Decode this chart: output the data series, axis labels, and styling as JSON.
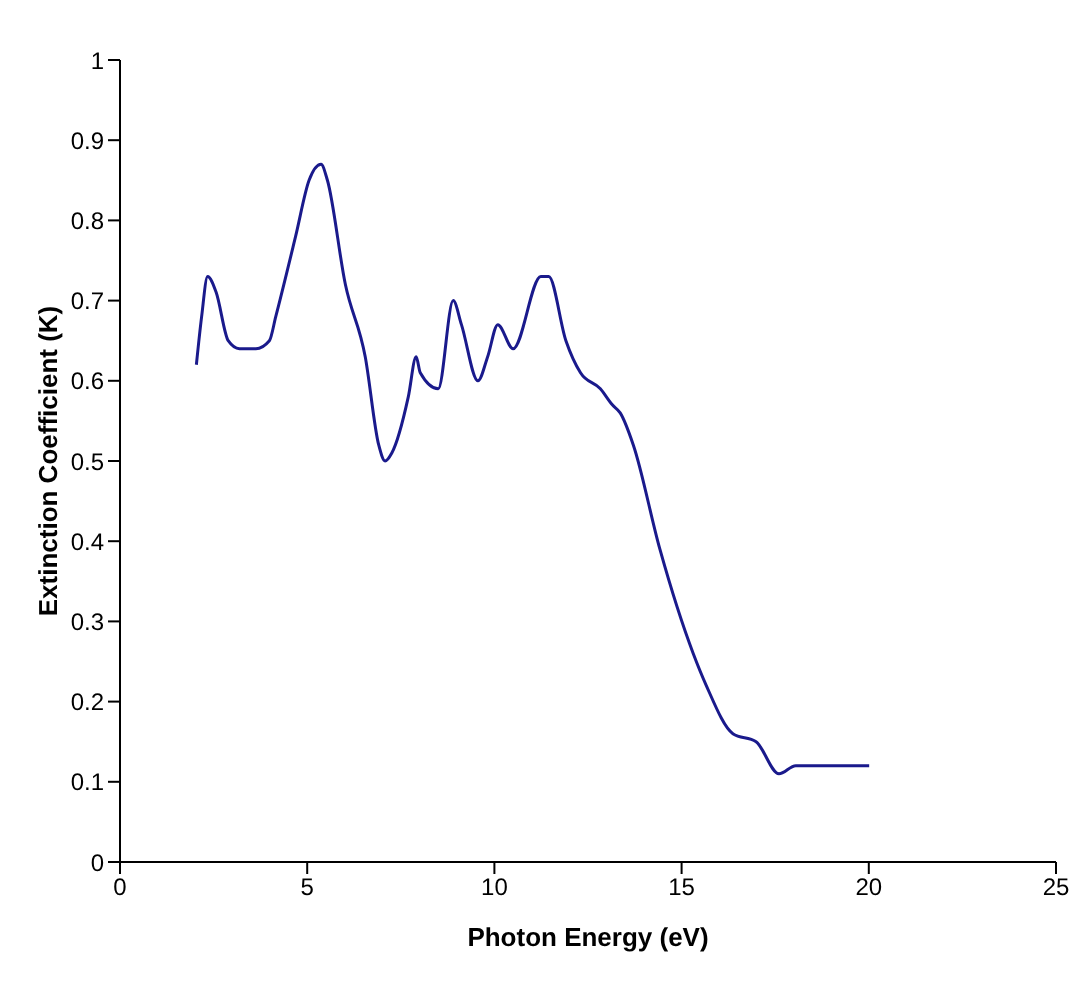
{
  "chart_data": {
    "type": "line",
    "xlabel": "Photon Energy (eV)",
    "ylabel": "Extinction Coefficient (K)",
    "x": [
      2.04,
      2.18,
      2.34,
      2.57,
      2.89,
      3.19,
      3.63,
      3.99,
      4.16,
      4.69,
      5.05,
      5.37,
      5.54,
      6.02,
      6.55,
      6.91,
      7.08,
      7.26,
      7.7,
      7.91,
      8.02,
      8.5,
      8.9,
      9.12,
      9.56,
      9.82,
      10.09,
      10.5,
      11.24,
      11.45,
      11.91,
      12.3,
      12.83,
      13.15,
      13.36,
      13.71,
      14.42,
      15.31,
      15.66,
      16.37,
      16.99,
      17.6,
      18.05,
      20.01
    ],
    "series": [
      {
        "color": "#1a1a8c",
        "values": [
          0.62,
          0.68,
          0.73,
          0.71,
          0.65,
          0.64,
          0.64,
          0.65,
          0.68,
          0.78,
          0.85,
          0.87,
          0.85,
          0.72,
          0.63,
          0.52,
          0.5,
          0.51,
          0.58,
          0.63,
          0.61,
          0.59,
          0.7,
          0.67,
          0.6,
          0.63,
          0.67,
          0.64,
          0.73,
          0.73,
          0.65,
          0.61,
          0.59,
          0.57,
          0.56,
          0.52,
          0.39,
          0.26,
          0.22,
          0.16,
          0.15,
          0.11,
          0.12,
          0.12
        ]
      }
    ],
    "xlim": [
      0,
      25
    ],
    "xticks": [
      0,
      5,
      10,
      15,
      20,
      25
    ],
    "ylim": [
      0,
      1
    ],
    "yticks": [
      0,
      0.1,
      0.2,
      0.3,
      0.4,
      0.5,
      0.6,
      0.7,
      0.8,
      0.9,
      1
    ],
    "grid": false,
    "legend": false,
    "marker": "none",
    "line_style": "solid"
  }
}
